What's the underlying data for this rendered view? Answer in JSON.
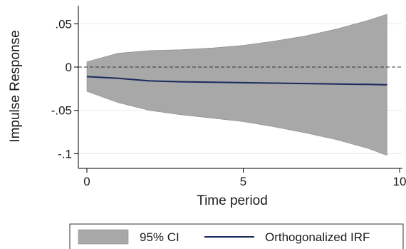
{
  "chart_data": {
    "type": "area",
    "xlabel": "Time period",
    "ylabel": "Impulse Response",
    "xlim": [
      0,
      10
    ],
    "ylim": [
      -0.107,
      0.07
    ],
    "x_ticks": [
      0,
      5,
      10
    ],
    "x_tick_labels": [
      "0",
      "5",
      "10"
    ],
    "y_ticks": [
      0.05,
      0,
      -0.05,
      -0.1
    ],
    "y_tick_labels": [
      ".05",
      "0",
      "-.05",
      "-.1"
    ],
    "grid": true,
    "reference_line": 0,
    "x": [
      0,
      1,
      2,
      3,
      4,
      5,
      6,
      7,
      8,
      9,
      9.6
    ],
    "series": [
      {
        "name": "Orthogonalized IRF",
        "kind": "line",
        "color": "#1a2a5e",
        "values": [
          -0.011,
          -0.013,
          -0.016,
          -0.017,
          -0.0175,
          -0.018,
          -0.0185,
          -0.019,
          -0.0195,
          -0.02,
          -0.0205
        ]
      },
      {
        "name": "95% CI",
        "kind": "band",
        "color": "#a8a8a8",
        "upper": [
          0.006,
          0.016,
          0.019,
          0.02,
          0.022,
          0.025,
          0.03,
          0.036,
          0.044,
          0.054,
          0.061
        ],
        "lower": [
          -0.028,
          -0.041,
          -0.05,
          -0.055,
          -0.059,
          -0.063,
          -0.069,
          -0.076,
          -0.084,
          -0.094,
          -0.102
        ]
      }
    ],
    "legend": {
      "position": "bottom",
      "entries": [
        "95% CI",
        "Orthogonalized IRF"
      ]
    }
  }
}
